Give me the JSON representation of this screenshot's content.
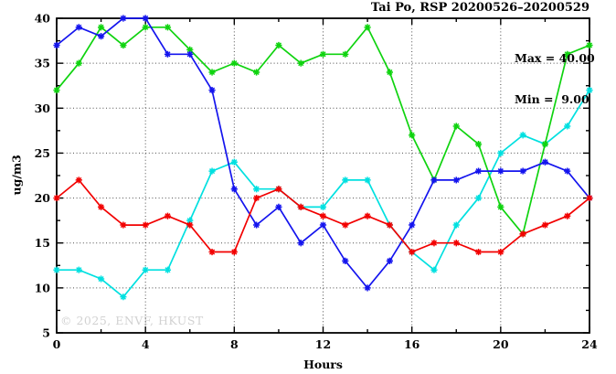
{
  "title": "Tai Po, RSP 20200526–20200529",
  "annotation": {
    "max_label": "Max = 40.00",
    "min_label": "Min =  9.00"
  },
  "watermark": "© 2025, ENVF, HKUST",
  "chart_data": {
    "type": "line",
    "title": "Tai Po, RSP 20200526–20200529",
    "xlabel": "Hours",
    "ylabel": "ug/m3",
    "xlim": [
      0,
      24
    ],
    "ylim": [
      5,
      40
    ],
    "x_major_ticks": [
      0,
      4,
      8,
      12,
      16,
      20,
      24
    ],
    "x_minor_ticks": [
      2,
      6,
      10,
      14,
      18,
      22
    ],
    "y_major_ticks": [
      5,
      10,
      15,
      20,
      25,
      30,
      35,
      40
    ],
    "y_minor_ticks": [
      7.5,
      12.5,
      17.5,
      22.5,
      27.5,
      32.5,
      37.5
    ],
    "grid": "dotted",
    "legend": "none",
    "x": [
      0,
      1,
      2,
      3,
      4,
      5,
      6,
      7,
      8,
      9,
      10,
      11,
      12,
      13,
      14,
      15,
      16,
      17,
      18,
      19,
      20,
      21,
      22,
      23,
      24
    ],
    "series": [
      {
        "name": "cyan",
        "color": "#00e0e0",
        "values": [
          12,
          12,
          11,
          9,
          12,
          12,
          17.5,
          23,
          24,
          21,
          21,
          19,
          19,
          22,
          22,
          17,
          14,
          12,
          17,
          20,
          25,
          27,
          26,
          28,
          32
        ]
      },
      {
        "name": "green",
        "color": "#0fd30f",
        "values": [
          32,
          35,
          39,
          37,
          39,
          39,
          36.5,
          34,
          35,
          34,
          37,
          35,
          36,
          36,
          39,
          34,
          27,
          22,
          28,
          26,
          19,
          16,
          26,
          36,
          37
        ]
      },
      {
        "name": "blue",
        "color": "#1414ee",
        "values": [
          37,
          39,
          38,
          40,
          40,
          36,
          36,
          32,
          21,
          17,
          19,
          15,
          17,
          13,
          10,
          13,
          17,
          22,
          22,
          23,
          23,
          23,
          24,
          23,
          20
        ]
      },
      {
        "name": "red",
        "color": "#f20000",
        "values": [
          20,
          22,
          19,
          17,
          17,
          18,
          17,
          14,
          14,
          20,
          21,
          19,
          18,
          17,
          18,
          17,
          14,
          15,
          15,
          14,
          14,
          16,
          17,
          18,
          20
        ]
      }
    ],
    "stats": {
      "max": "40.00",
      "min": "9.00"
    }
  }
}
